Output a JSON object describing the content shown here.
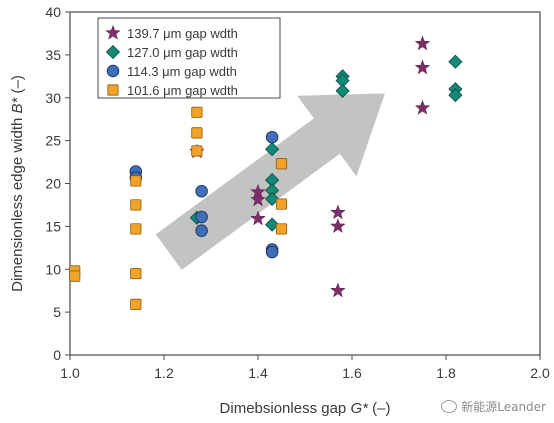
{
  "colors": {
    "star": "#7e2f6b",
    "diamond": "#138a77",
    "circle": "#3f6fb8",
    "square": "#f0a229",
    "arrow": "#bdbdbd",
    "axis": "#4a4a4a"
  },
  "watermark": {
    "text": "新能源Leander"
  },
  "chart_data": {
    "type": "scatter",
    "title": "",
    "xlabel": "Dimebsionless gap G* (–)",
    "ylabel": "Dimensionless edge width B* (–)",
    "xlabel_parts": [
      "Dimebsionless gap ",
      "G*",
      " (–)"
    ],
    "ylabel_parts": [
      "Dimensionless edge width ",
      "B*",
      " (–)"
    ],
    "xlim": [
      1.0,
      2.0
    ],
    "ylim": [
      0,
      40
    ],
    "xticks": [
      1.0,
      1.2,
      1.4,
      1.6,
      1.8,
      2.0
    ],
    "xtick_labels": [
      "1.0",
      "1.2",
      "1.4",
      "1.6",
      "1.8",
      "2.0"
    ],
    "yticks": [
      0,
      5,
      10,
      15,
      20,
      25,
      30,
      35,
      40
    ],
    "ytick_labels": [
      "0",
      "5",
      "10",
      "15",
      "20",
      "25",
      "30",
      "35",
      "40"
    ],
    "grid": false,
    "legend_position": "top-left",
    "arrow": {
      "from": [
        1.21,
        12.0
      ],
      "to": [
        1.67,
        30.5
      ],
      "note": "trend arrow (decorative)"
    },
    "series": [
      {
        "name": "139.7 μm gap wdth",
        "marker": "star",
        "points": [
          [
            1.27,
            23.7
          ],
          [
            1.4,
            19.0
          ],
          [
            1.4,
            18.1
          ],
          [
            1.4,
            15.9
          ],
          [
            1.57,
            16.6
          ],
          [
            1.57,
            15.0
          ],
          [
            1.57,
            7.5
          ],
          [
            1.75,
            36.3
          ],
          [
            1.75,
            33.5
          ],
          [
            1.75,
            28.8
          ]
        ]
      },
      {
        "name": "127.0 μm gap wdth",
        "marker": "diamond",
        "points": [
          [
            1.27,
            16.0
          ],
          [
            1.43,
            24.0
          ],
          [
            1.43,
            20.4
          ],
          [
            1.43,
            19.2
          ],
          [
            1.43,
            18.2
          ],
          [
            1.43,
            15.2
          ],
          [
            1.58,
            32.5
          ],
          [
            1.58,
            32.0
          ],
          [
            1.58,
            30.8
          ],
          [
            1.82,
            34.2
          ],
          [
            1.82,
            31.0
          ],
          [
            1.82,
            30.3
          ]
        ]
      },
      {
        "name": "114.3 μm gap wdth",
        "marker": "circle",
        "points": [
          [
            1.14,
            21.4
          ],
          [
            1.14,
            20.7
          ],
          [
            1.28,
            19.1
          ],
          [
            1.28,
            16.1
          ],
          [
            1.28,
            14.5
          ],
          [
            1.43,
            25.4
          ],
          [
            1.43,
            12.3
          ],
          [
            1.43,
            12.0
          ]
        ]
      },
      {
        "name": "101.6 μm gap wdth",
        "marker": "square",
        "points": [
          [
            1.01,
            9.8
          ],
          [
            1.01,
            9.2
          ],
          [
            1.14,
            20.3
          ],
          [
            1.14,
            17.5
          ],
          [
            1.14,
            14.7
          ],
          [
            1.14,
            9.5
          ],
          [
            1.14,
            5.9
          ],
          [
            1.27,
            28.3
          ],
          [
            1.27,
            25.9
          ],
          [
            1.27,
            23.8
          ],
          [
            1.45,
            22.3
          ],
          [
            1.45,
            17.6
          ],
          [
            1.45,
            14.7
          ]
        ]
      }
    ]
  }
}
